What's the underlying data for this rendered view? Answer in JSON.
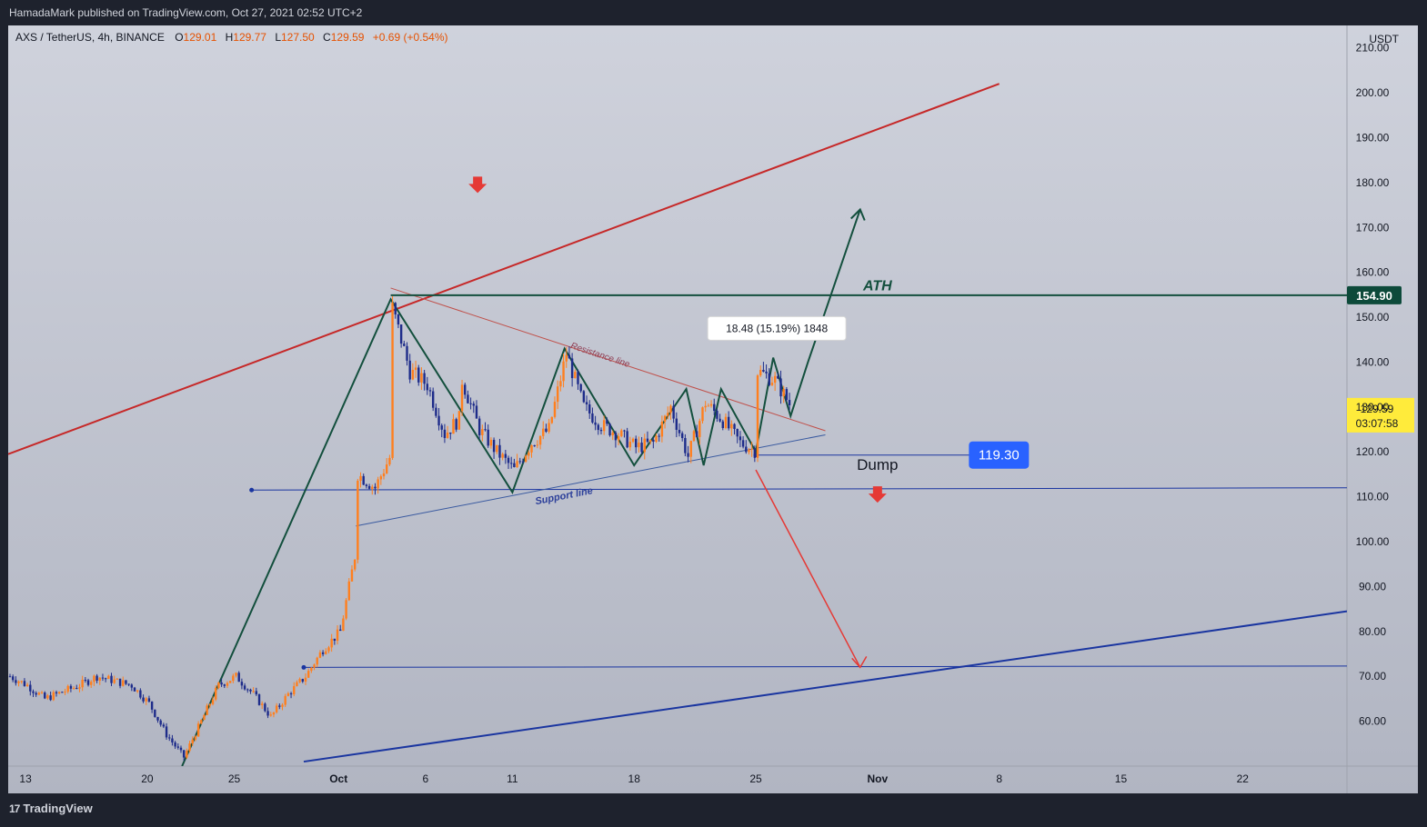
{
  "header": {
    "published": "HamadaMark published on TradingView.com, Oct 27, 2021 02:52 UTC+2"
  },
  "legend": {
    "symbol": "AXS / TetherUS, 4h, BINANCE",
    "o_label": "O",
    "o_value": "129.01",
    "h_label": "H",
    "h_value": "129.77",
    "l_label": "L",
    "l_value": "127.50",
    "c_label": "C",
    "c_value": "129.59",
    "change": "+0.69 (+0.54%)"
  },
  "footer": {
    "logo_text": "TradingView",
    "logo_mark": "17"
  },
  "colors": {
    "chart_bg_top": "#cfd2dc",
    "chart_bg_bottom": "#b1b5c2",
    "candle_up": "#ff7f1e",
    "candle_down": "#1e2c8a",
    "green_pattern": "#134f3d",
    "red_channel": "#c62828",
    "blue_channel": "#1a35a0",
    "support": "#3a4fa0",
    "value_up": "#e65100",
    "badge_blue": "#2962ff",
    "badge_dark": "#0d4a3a",
    "badge_yellow": "#ffeb3b"
  },
  "chart_data": {
    "type": "candlestick",
    "price_unit": "USDT",
    "y_ticks": [
      "210.00",
      "200.00",
      "190.00",
      "180.00",
      "170.00",
      "160.00",
      "150.00",
      "140.00",
      "130.00",
      "120.00",
      "110.00",
      "100.00",
      "90.00",
      "80.00",
      "70.00",
      "60.00"
    ],
    "ylim": [
      50,
      215
    ],
    "x_ticks": [
      {
        "label": "13",
        "date": "2021-09-13"
      },
      {
        "label": "20",
        "date": "2021-09-20"
      },
      {
        "label": "25",
        "date": "2021-09-25"
      },
      {
        "label": "Oct",
        "date": "2021-10-01",
        "bold": true
      },
      {
        "label": "6",
        "date": "2021-10-06"
      },
      {
        "label": "11",
        "date": "2021-10-11"
      },
      {
        "label": "18",
        "date": "2021-10-18"
      },
      {
        "label": "25",
        "date": "2021-10-25"
      },
      {
        "label": "Nov",
        "date": "2021-11-01",
        "bold": true
      },
      {
        "label": "8",
        "date": "2021-11-08"
      },
      {
        "label": "15",
        "date": "2021-11-15"
      },
      {
        "label": "22",
        "date": "2021-11-22"
      }
    ],
    "xlim": [
      "2021-09-12",
      "2021-11-28"
    ],
    "price_path": [
      [
        "2021-09-12",
        70
      ],
      [
        "2021-09-13",
        68
      ],
      [
        "2021-09-14",
        65
      ],
      [
        "2021-09-16",
        68
      ],
      [
        "2021-09-17",
        70
      ],
      [
        "2021-09-19",
        68
      ],
      [
        "2021-09-20",
        64
      ],
      [
        "2021-09-21",
        57
      ],
      [
        "2021-09-22",
        52
      ],
      [
        "2021-09-23",
        60
      ],
      [
        "2021-09-24",
        68
      ],
      [
        "2021-09-25",
        70
      ],
      [
        "2021-09-26",
        66
      ],
      [
        "2021-09-27",
        61
      ],
      [
        "2021-09-28",
        66
      ],
      [
        "2021-09-29",
        70
      ],
      [
        "2021-09-30",
        76
      ],
      [
        "2021-10-01",
        80
      ],
      [
        "2021-10-02",
        100
      ],
      [
        "2021-10-02",
        115
      ],
      [
        "2021-10-03",
        112
      ],
      [
        "2021-10-04",
        120
      ],
      [
        "2021-10-04",
        145
      ],
      [
        "2021-10-04",
        152
      ],
      [
        "2021-10-05",
        138
      ],
      [
        "2021-10-06",
        135
      ],
      [
        "2021-10-07",
        124
      ],
      [
        "2021-10-08",
        128
      ],
      [
        "2021-10-08",
        136
      ],
      [
        "2021-10-09",
        125
      ],
      [
        "2021-10-10",
        120
      ],
      [
        "2021-10-11",
        116
      ],
      [
        "2021-10-12",
        122
      ],
      [
        "2021-10-13",
        125
      ],
      [
        "2021-10-14",
        142
      ],
      [
        "2021-10-15",
        130
      ],
      [
        "2021-10-16",
        126
      ],
      [
        "2021-10-17",
        124
      ],
      [
        "2021-10-18",
        121
      ],
      [
        "2021-10-19",
        122
      ],
      [
        "2021-10-20",
        130
      ],
      [
        "2021-10-21",
        119
      ],
      [
        "2021-10-22",
        131
      ],
      [
        "2021-10-23",
        127
      ],
      [
        "2021-10-24",
        122
      ],
      [
        "2021-10-25",
        120
      ],
      [
        "2021-10-25",
        138
      ],
      [
        "2021-10-26",
        136
      ],
      [
        "2021-10-27",
        129.59
      ]
    ],
    "current_price": "129.59",
    "countdown": "03:07:58",
    "ath_price": "154.90",
    "ath_label": "ATH",
    "support_level": "119.30",
    "measure_label": "18.48 (15.19%) 1848",
    "resistance_label": "Resistance line",
    "support_label": "Support line",
    "dump_label": "Dump",
    "drawings": {
      "red_channel": [
        [
          "2021-09-12",
          119.5
        ],
        [
          "2021-11-08",
          202
        ]
      ],
      "blue_channel": [
        [
          "2021-09-29",
          51
        ],
        [
          "2021-11-28",
          84.5
        ]
      ],
      "ath_line": [
        [
          "2021-10-04",
          154.9
        ],
        [
          "2021-11-28",
          154.9
        ]
      ],
      "resistance_line": [
        [
          "2021-10-04",
          156.5
        ],
        [
          "2021-10-29",
          124.7
        ]
      ],
      "support_line": [
        [
          "2021-10-02",
          103.5
        ],
        [
          "2021-10-29",
          123.8
        ]
      ],
      "level_112": [
        [
          "2021-09-26",
          111.5
        ],
        [
          "2021-11-28",
          112
        ]
      ],
      "level_72": [
        [
          "2021-09-29",
          72
        ],
        [
          "2021-11-28",
          72.3
        ]
      ],
      "level_119": [
        [
          "2021-10-25",
          119.3
        ],
        [
          "2021-11-08",
          119.3
        ]
      ],
      "green_zigzag": [
        [
          "2021-09-22",
          50
        ],
        [
          "2021-10-04",
          154
        ],
        [
          "2021-10-11",
          111
        ],
        [
          "2021-10-14",
          143
        ],
        [
          "2021-10-18",
          117
        ],
        [
          "2021-10-21",
          134
        ],
        [
          "2021-10-22",
          117
        ],
        [
          "2021-10-23",
          134
        ],
        [
          "2021-10-25",
          120
        ],
        [
          "2021-10-26",
          141
        ],
        [
          "2021-10-27",
          128
        ],
        [
          "2021-10-28",
          140
        ],
        [
          "2021-10-31",
          174
        ]
      ],
      "dump_arrow": [
        [
          "2021-10-25",
          116
        ],
        [
          "2021-10-31",
          72
        ]
      ],
      "top_down_arrow": [
        "2021-10-09",
        179.5
      ],
      "dump_down_arrow": [
        "2021-11-01",
        110.5
      ]
    }
  }
}
